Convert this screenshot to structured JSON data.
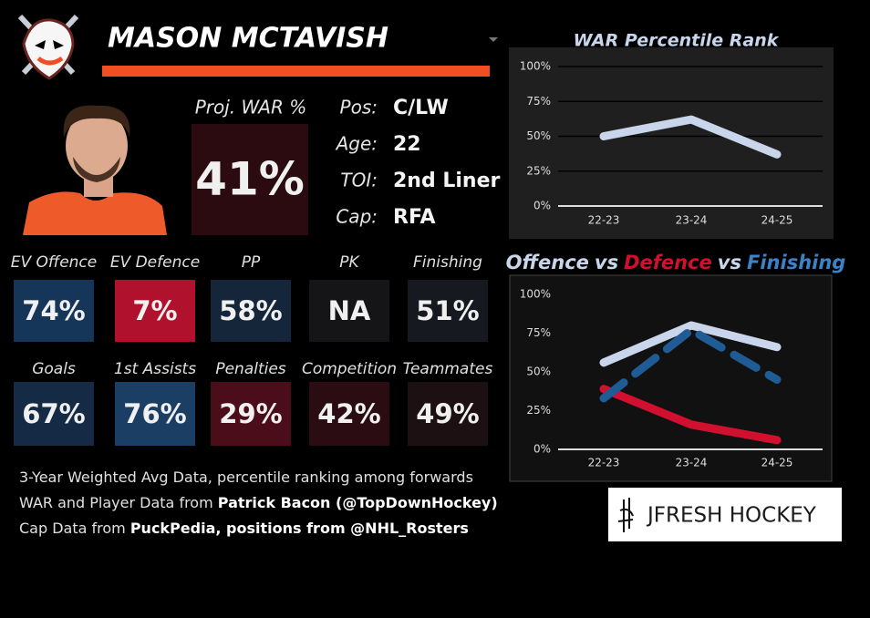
{
  "header": {
    "name": "MASON MCTAVISH"
  },
  "proj_war": {
    "label": "Proj. WAR %",
    "value": "41%",
    "color": "#2b0a10"
  },
  "bio": [
    {
      "label": "Pos:",
      "value": "C/LW"
    },
    {
      "label": "Age:",
      "value": "22"
    },
    {
      "label": "TOI:",
      "value": "2nd Liner"
    },
    {
      "label": "Cap:",
      "value": "RFA"
    }
  ],
  "tiles": [
    [
      {
        "label": "EV Offence",
        "value": "74%",
        "color": "#163659"
      },
      {
        "label": "EV Defence",
        "value": "7%",
        "color": "#b0122d"
      },
      {
        "label": "PP",
        "value": "58%",
        "color": "#15253a"
      },
      {
        "label": "PK",
        "value": "NA",
        "color": "#151518"
      },
      {
        "label": "Finishing",
        "value": "51%",
        "color": "#161a20"
      }
    ],
    [
      {
        "label": "Goals",
        "value": "67%",
        "color": "#142a45"
      },
      {
        "label": "1st Assists",
        "value": "76%",
        "color": "#1b3e64"
      },
      {
        "label": "Penalties",
        "value": "29%",
        "color": "#4a0d19"
      },
      {
        "label": "Competition",
        "value": "42%",
        "color": "#2a0c12"
      },
      {
        "label": "Teammates",
        "value": "49%",
        "color": "#1d1013"
      }
    ]
  ],
  "notes": [
    {
      "text": "3-Year Weighted Avg Data, percentile ranking among forwards"
    },
    {
      "text": "WAR and Player Data from ",
      "bold": "Patrick Bacon (@TopDownHockey)"
    },
    {
      "text": "Cap Data from ",
      "bold": "PuckPedia, positions from @NHL_Rosters"
    }
  ],
  "brand": "JFRESH HOCKEY",
  "chart_data": [
    {
      "type": "line",
      "title": "WAR Percentile Rank",
      "categories": [
        "22-23",
        "23-24",
        "24-25"
      ],
      "series": [
        {
          "name": "WAR",
          "color": "#c9d5ea",
          "values": [
            50,
            62,
            37
          ]
        }
      ],
      "ylim": [
        0,
        100
      ],
      "yticks": [
        {
          "value": 0,
          "label": "0%"
        },
        {
          "value": 25,
          "label": "25%"
        },
        {
          "value": 50,
          "label": "50%"
        },
        {
          "value": 75,
          "label": "75%"
        },
        {
          "value": 100,
          "label": "100%"
        }
      ],
      "grid": true
    },
    {
      "type": "line",
      "title_joiner": "vs",
      "categories": [
        "22-23",
        "23-24",
        "24-25"
      ],
      "series": [
        {
          "name": "Offence",
          "color": "#c9d5ea",
          "values": [
            56,
            80,
            66
          ]
        },
        {
          "name": "Defence",
          "color": "#d0102e",
          "values": [
            39,
            16,
            6
          ]
        },
        {
          "name": "Finishing",
          "color": "#1f5b94",
          "values": [
            33,
            77,
            45
          ],
          "dashed": true
        }
      ],
      "ylim": [
        0,
        100
      ],
      "yticks": [
        {
          "value": 0,
          "label": "0%"
        },
        {
          "value": 25,
          "label": "25%"
        },
        {
          "value": 50,
          "label": "50%"
        },
        {
          "value": 75,
          "label": "75%"
        },
        {
          "value": 100,
          "label": "100%"
        }
      ],
      "grid": false
    }
  ]
}
